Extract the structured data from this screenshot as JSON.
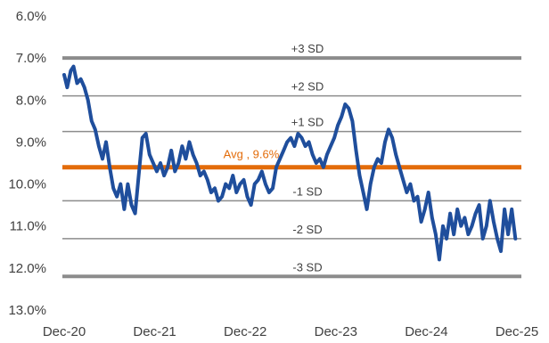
{
  "chart_data": {
    "type": "line",
    "y_axis": {
      "inverted": true,
      "range": [
        6.0,
        13.0
      ],
      "ticks": [
        "6.0%",
        "7.0%",
        "8.0%",
        "9.0%",
        "10.0%",
        "11.0%",
        "12.0%",
        "13.0%"
      ],
      "tick_values": [
        6,
        7,
        8,
        9,
        10,
        11,
        12,
        13
      ]
    },
    "x_axis": {
      "range": [
        2020.917,
        2025.917
      ],
      "ticks": [
        "Dec-20",
        "Dec-21",
        "Dec-22",
        "Dec-23",
        "Dec-24",
        "Dec-25"
      ],
      "tick_values": [
        2020.917,
        2021.917,
        2022.917,
        2023.917,
        2024.917,
        2025.917
      ]
    },
    "reference_lines": [
      {
        "label": "+3 SD",
        "value": 7.0
      },
      {
        "label": "+2 SD",
        "value": 7.9
      },
      {
        "label": "+1 SD",
        "value": 8.75
      },
      {
        "label": "-1 SD",
        "value": 10.4
      },
      {
        "label": "-2 SD",
        "value": 11.3
      },
      {
        "label": "-3 SD",
        "value": 12.2
      }
    ],
    "average": {
      "label": "Avg , 9.6%",
      "value": 9.6
    },
    "colors": {
      "series": "#1f4e9c",
      "average": "#e36c0a",
      "sd_line": "#8c8c8c",
      "avg_label": "#e36c0a"
    },
    "series": [
      {
        "x": [
          2020.917,
          2020.95,
          2020.99,
          2021.02,
          2021.06,
          2021.1,
          2021.14,
          2021.18,
          2021.22,
          2021.26,
          2021.3,
          2021.34,
          2021.38,
          2021.42,
          2021.46,
          2021.5,
          2021.54,
          2021.58,
          2021.62,
          2021.66,
          2021.7,
          2021.74,
          2021.78,
          2021.82,
          2021.86,
          2021.9,
          2021.94,
          2021.98,
          2022.02,
          2022.06,
          2022.1,
          2022.14,
          2022.18,
          2022.22,
          2022.26,
          2022.3,
          2022.34,
          2022.38,
          2022.42,
          2022.46,
          2022.5,
          2022.54,
          2022.58,
          2022.62,
          2022.66,
          2022.7,
          2022.74,
          2022.78,
          2022.82,
          2022.86,
          2022.9,
          2022.94,
          2022.98,
          2023.02,
          2023.06,
          2023.1,
          2023.14,
          2023.18,
          2023.22,
          2023.26,
          2023.3,
          2023.34,
          2023.38,
          2023.42,
          2023.46,
          2023.5,
          2023.54,
          2023.58,
          2023.62,
          2023.66,
          2023.7,
          2023.74,
          2023.78,
          2023.82,
          2023.86,
          2023.9,
          2023.94,
          2023.98,
          2024.02,
          2024.06,
          2024.1,
          2024.14,
          2024.18,
          2024.22,
          2024.26,
          2024.3,
          2024.34,
          2024.38,
          2024.42,
          2024.46,
          2024.5,
          2024.54,
          2024.58,
          2024.62,
          2024.66,
          2024.7,
          2024.74,
          2024.78,
          2024.82,
          2024.86,
          2024.9,
          2024.94,
          2024.98,
          2025.02,
          2025.06,
          2025.1,
          2025.14,
          2025.18,
          2025.22,
          2025.26,
          2025.3,
          2025.34,
          2025.38,
          2025.42,
          2025.46,
          2025.5,
          2025.54,
          2025.58,
          2025.62,
          2025.66,
          2025.7,
          2025.74,
          2025.78,
          2025.82,
          2025.86,
          2025.9
        ],
        "y": [
          7.4,
          7.7,
          7.3,
          7.2,
          7.6,
          7.5,
          7.7,
          8.0,
          8.5,
          8.7,
          9.1,
          9.4,
          9.0,
          9.6,
          10.1,
          10.3,
          10.0,
          10.6,
          10.0,
          10.5,
          10.7,
          9.8,
          8.9,
          8.8,
          9.3,
          9.5,
          9.7,
          9.5,
          9.8,
          9.6,
          9.2,
          9.7,
          9.5,
          9.1,
          9.4,
          9.0,
          9.3,
          9.5,
          9.8,
          9.7,
          9.9,
          10.2,
          10.1,
          10.4,
          10.3,
          10.0,
          10.1,
          9.8,
          10.2,
          10.0,
          9.9,
          10.3,
          10.5,
          10.0,
          9.9,
          9.7,
          10.0,
          10.2,
          10.1,
          9.6,
          9.4,
          9.2,
          9.0,
          8.9,
          9.1,
          8.8,
          8.9,
          9.1,
          9.0,
          9.3,
          9.5,
          9.4,
          9.6,
          9.3,
          9.1,
          8.9,
          8.6,
          8.4,
          8.1,
          8.2,
          8.5,
          9.2,
          9.8,
          10.2,
          10.6,
          10.0,
          9.6,
          9.4,
          9.5,
          9.0,
          8.7,
          8.9,
          9.3,
          9.6,
          9.9,
          10.2,
          10.0,
          10.4,
          10.3,
          10.9,
          10.6,
          10.2,
          10.8,
          11.2,
          11.8,
          11.0,
          11.3,
          10.7,
          11.2,
          10.6,
          11.0,
          10.8,
          11.2,
          11.0,
          10.7,
          10.5,
          11.3,
          11.0,
          10.4,
          10.9,
          11.3,
          11.6,
          10.6,
          11.2,
          10.6,
          11.3
        ]
      }
    ]
  }
}
